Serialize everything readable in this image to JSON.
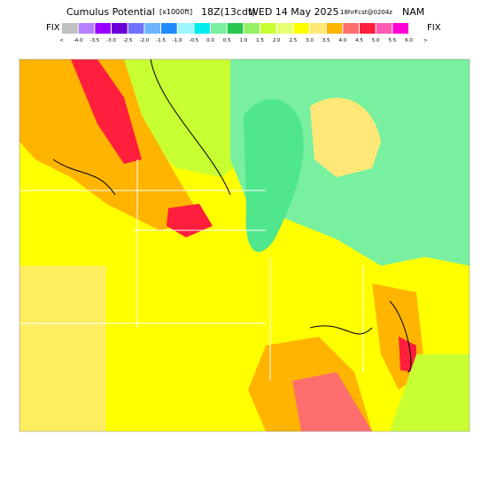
{
  "header": {
    "title": "Cumulus Potential",
    "units": "[x1000ft]",
    "time": "18Z(13cdt)",
    "date": "WED 14 May 2025",
    "forecast": "18hrFcst@0204z",
    "model": "NAM"
  },
  "colorbar": {
    "left_label": "FIX",
    "right_label": "FIX",
    "labels": [
      "<",
      "-4.0",
      "-3.5",
      "-3.0",
      "-2.5",
      "-2.0",
      "-1.5",
      "-1.0",
      "-0.5",
      "0.0",
      "0.5",
      "1.0",
      "1.5",
      "2.0",
      "2.5",
      "3.0",
      "3.5",
      "4.0",
      "4.5",
      "5.0",
      "5.5",
      "6.0",
      ">"
    ],
    "colors": [
      "#c0c0c0",
      "#b482ff",
      "#9a00ff",
      "#6a00d8",
      "#7070ff",
      "#6eb4ff",
      "#1e8cff",
      "#9ef5ff",
      "#00ecec",
      "#78f0a0",
      "#28c850",
      "#96f064",
      "#c8ff32",
      "#e6ff6e",
      "#ffff00",
      "#ffe878",
      "#ffb400",
      "#ff6e6e",
      "#ff1e3c",
      "#ff5ab4",
      "#ff00d2"
    ]
  }
}
